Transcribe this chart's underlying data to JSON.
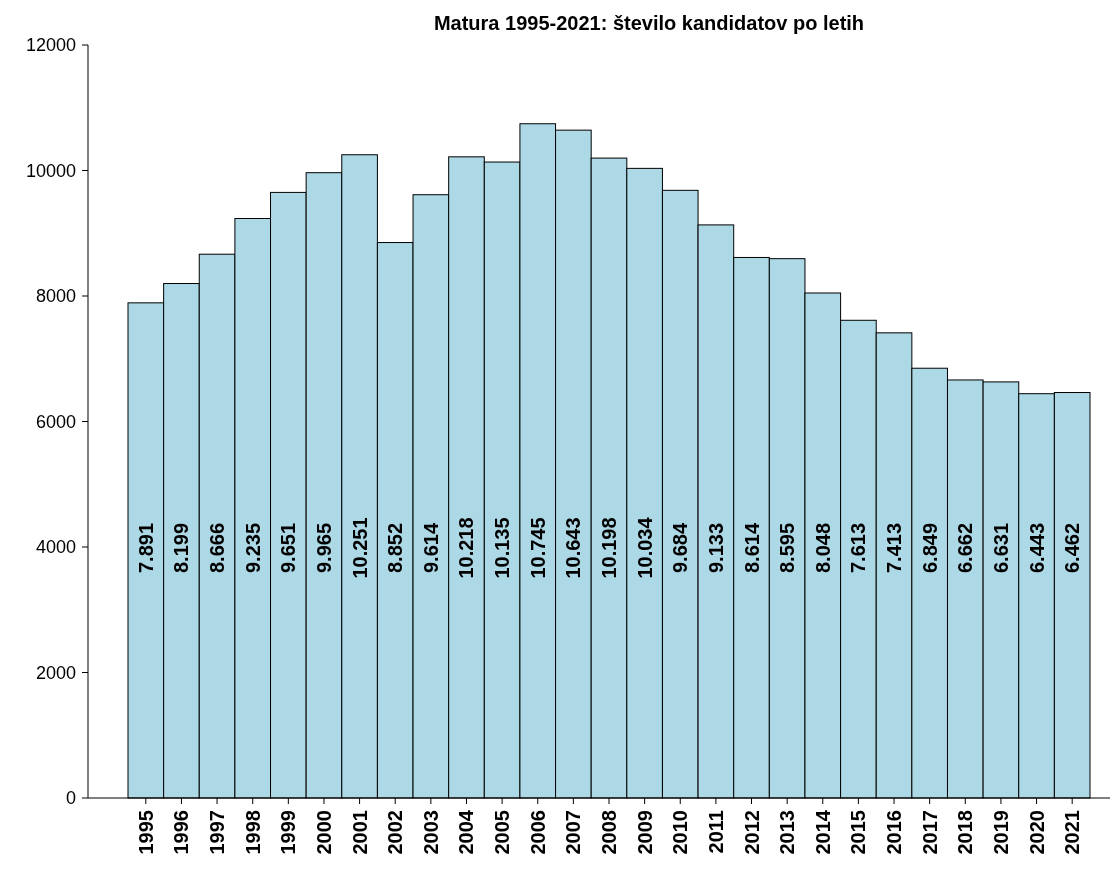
{
  "chart_data": {
    "type": "bar",
    "title": "Matura 1995-2021: število kandidatov po letih",
    "categories": [
      "1995",
      "1996",
      "1997",
      "1998",
      "1999",
      "2000",
      "2001",
      "2002",
      "2003",
      "2004",
      "2005",
      "2006",
      "2007",
      "2008",
      "2009",
      "2010",
      "2011",
      "2012",
      "2013",
      "2014",
      "2015",
      "2016",
      "2017",
      "2018",
      "2019",
      "2020",
      "2021"
    ],
    "values": [
      7891,
      8199,
      8666,
      9235,
      9651,
      9965,
      10251,
      8852,
      9614,
      10218,
      10135,
      10745,
      10643,
      10198,
      10034,
      9684,
      9133,
      8614,
      8595,
      8048,
      7613,
      7413,
      6849,
      6662,
      6631,
      6443,
      6462
    ],
    "value_labels": [
      "7.891",
      "8.199",
      "8.666",
      "9.235",
      "9.651",
      "9.965",
      "10.251",
      "8.852",
      "9.614",
      "10.218",
      "10.135",
      "10.745",
      "10.643",
      "10.198",
      "10.034",
      "9.684",
      "9.133",
      "8.614",
      "8.595",
      "8.048",
      "7.613",
      "7.413",
      "6.849",
      "6.662",
      "6.631",
      "6.443",
      "6.462"
    ],
    "color": "#add8e6",
    "ylim": [
      0,
      12000
    ],
    "yticks": [
      0,
      2000,
      4000,
      6000,
      8000,
      10000,
      12000
    ],
    "grid": false
  }
}
